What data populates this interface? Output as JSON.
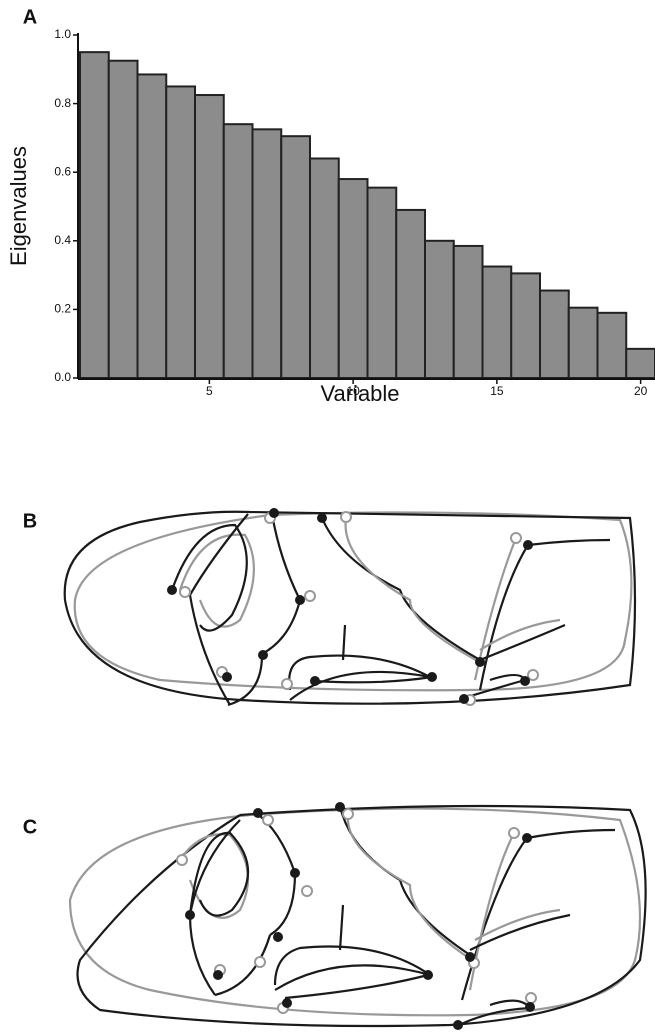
{
  "chart_data": {
    "type": "bar",
    "label": "A",
    "ylabel": "Eigenvalues",
    "xlabel": "Variable",
    "x": [
      1,
      2,
      3,
      4,
      5,
      6,
      7,
      8,
      9,
      10,
      11,
      12,
      13,
      14,
      15,
      16,
      17,
      18,
      19,
      20
    ],
    "values": [
      0.95,
      0.925,
      0.885,
      0.85,
      0.825,
      0.74,
      0.725,
      0.705,
      0.64,
      0.58,
      0.555,
      0.49,
      0.4,
      0.385,
      0.325,
      0.305,
      0.255,
      0.205,
      0.19,
      0.085
    ],
    "color": "#8c8c8c",
    "xlim": [
      0.5,
      20.5
    ],
    "xticks": [
      5,
      10,
      15,
      20
    ],
    "ylim": [
      0,
      1
    ],
    "yticks": [
      {
        "value": 0,
        "label": "0.0"
      },
      0.2,
      0.4,
      0.6,
      0.8,
      {
        "value": 1,
        "label": "1.0"
      }
    ]
  },
  "panel_labels": [
    "B",
    "C"
  ]
}
